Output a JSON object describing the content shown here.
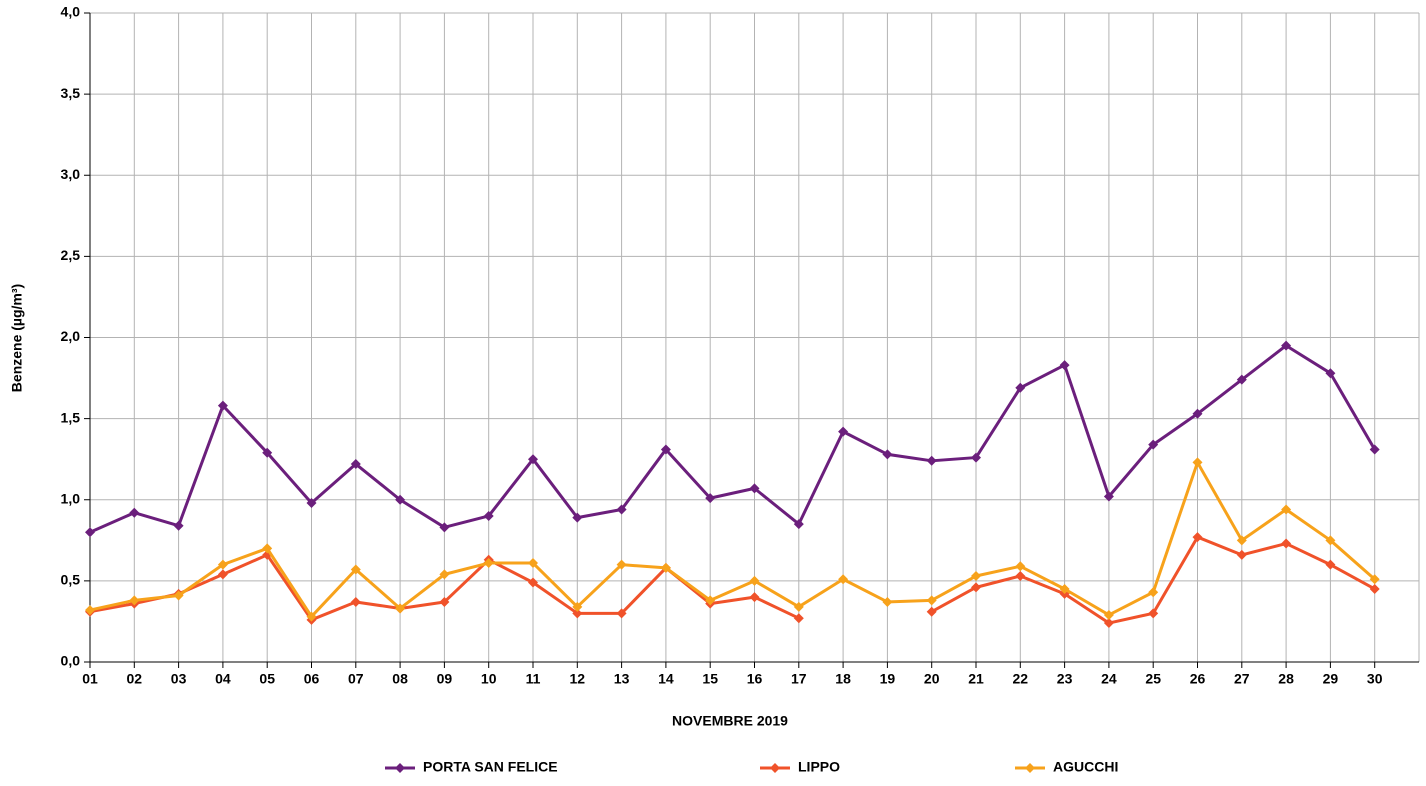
{
  "chart_data": {
    "type": "line",
    "x_label": "NOVEMBRE 2019",
    "y_label": "Benzene (µg/m³)",
    "categories": [
      "01",
      "02",
      "03",
      "04",
      "05",
      "06",
      "07",
      "08",
      "09",
      "10",
      "11",
      "12",
      "13",
      "14",
      "15",
      "16",
      "17",
      "18",
      "19",
      "20",
      "21",
      "22",
      "23",
      "24",
      "25",
      "26",
      "27",
      "28",
      "29",
      "30"
    ],
    "series": [
      {
        "name": "PORTA SAN FELICE",
        "color": "#6b1f7c",
        "values": [
          0.8,
          0.92,
          0.84,
          1.58,
          1.29,
          0.98,
          1.22,
          1.0,
          0.83,
          0.9,
          1.25,
          0.89,
          0.94,
          1.31,
          1.01,
          1.07,
          0.85,
          1.42,
          1.28,
          1.24,
          1.26,
          1.69,
          1.83,
          1.02,
          1.34,
          1.53,
          1.74,
          1.95,
          1.78,
          1.31
        ]
      },
      {
        "name": "LIPPO",
        "color": "#f0522a",
        "values": [
          0.31,
          0.36,
          0.42,
          0.54,
          0.66,
          0.26,
          0.37,
          0.33,
          0.37,
          0.63,
          0.49,
          0.3,
          0.3,
          0.58,
          0.36,
          0.4,
          0.27,
          null,
          null,
          0.31,
          0.46,
          0.53,
          0.42,
          0.24,
          0.3,
          0.77,
          0.66,
          0.73,
          0.6,
          0.45
        ]
      },
      {
        "name": "AGUCCHI",
        "color": "#f7a21b",
        "values": [
          0.32,
          0.38,
          0.41,
          0.6,
          0.7,
          0.28,
          0.57,
          0.33,
          0.54,
          0.61,
          0.61,
          0.34,
          0.6,
          0.58,
          0.38,
          0.5,
          0.34,
          0.51,
          0.37,
          0.38,
          0.53,
          0.59,
          0.45,
          0.29,
          0.43,
          1.23,
          0.75,
          0.94,
          0.75,
          0.51
        ]
      }
    ],
    "ylim": [
      0,
      4
    ],
    "yticks": [
      {
        "value": 0,
        "label": "0,0"
      },
      {
        "value": 0.5,
        "label": "0,5"
      },
      {
        "value": 1,
        "label": "1,0"
      },
      {
        "value": 1.5,
        "label": "1,5"
      },
      {
        "value": 2,
        "label": "2,0"
      },
      {
        "value": 2.5,
        "label": "2,5"
      },
      {
        "value": 3,
        "label": "3,0"
      },
      {
        "value": 3.5,
        "label": "3,5"
      },
      {
        "value": 4,
        "label": "4,0"
      }
    ],
    "grid": true,
    "legend": "bottom"
  }
}
